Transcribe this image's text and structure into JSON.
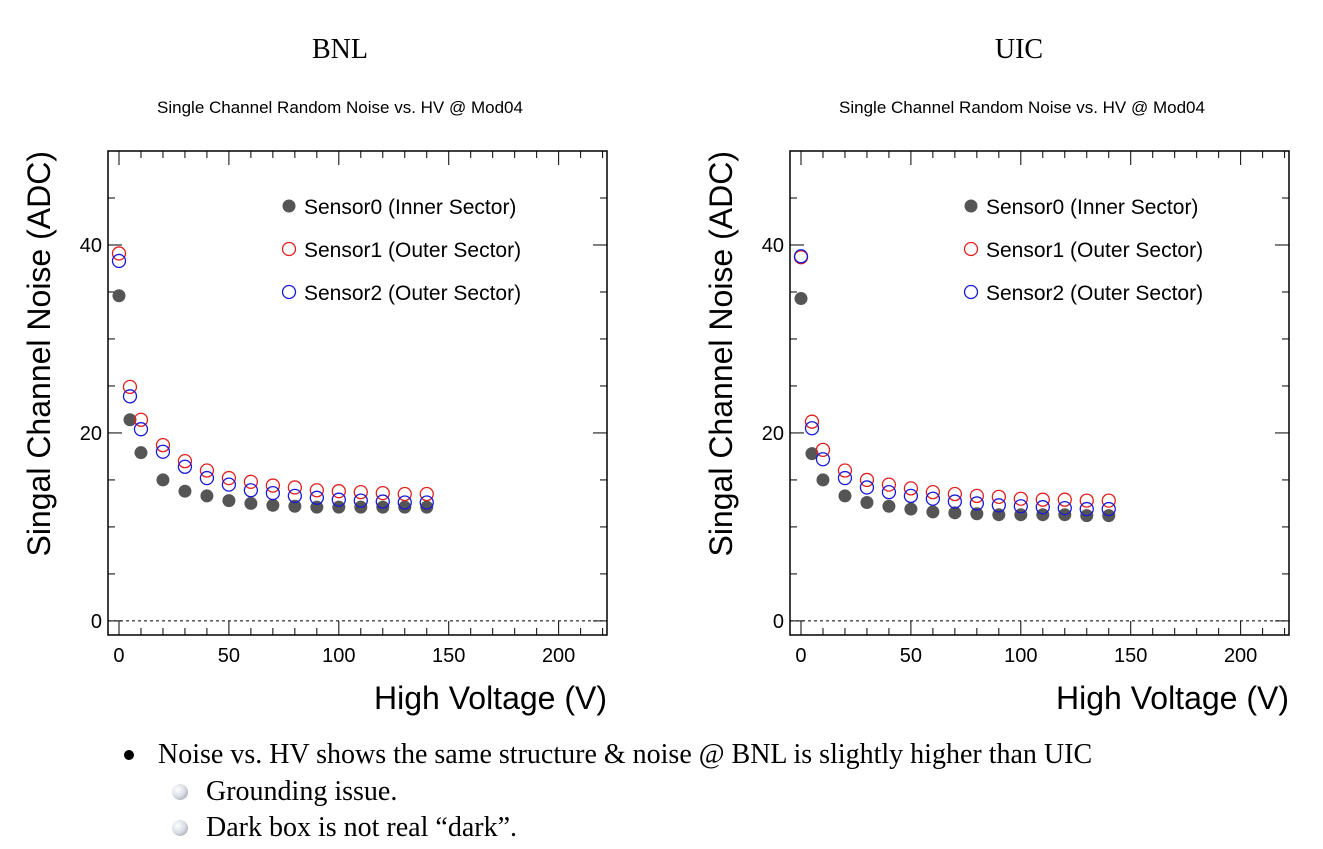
{
  "panels": [
    {
      "header": "BNL"
    },
    {
      "header": "UIC"
    }
  ],
  "chart_data": [
    {
      "type": "scatter",
      "title": "Single Channel Random Noise vs. HV @ Mod04",
      "xlabel": "High Voltage (V)",
      "ylabel": "Singal Channel Noise (ADC)",
      "xlim": [
        -5,
        222
      ],
      "ylim": [
        -1.5,
        50
      ],
      "xticks": [
        0,
        50,
        100,
        150,
        200
      ],
      "yticks": [
        0,
        20,
        40
      ],
      "reference_line": {
        "y": 0,
        "style": "dashed"
      },
      "legend_position": "top-right",
      "series": [
        {
          "name": "Sensor0 (Inner Sector)",
          "marker": "filled-circle",
          "color": "#555555",
          "x": [
            0,
            5,
            10,
            20,
            30,
            40,
            50,
            60,
            70,
            80,
            90,
            100,
            110,
            120,
            130,
            140
          ],
          "y": [
            34.6,
            21.4,
            17.9,
            15.0,
            13.8,
            13.3,
            12.8,
            12.5,
            12.3,
            12.2,
            12.1,
            12.1,
            12.1,
            12.1,
            12.1,
            12.1
          ]
        },
        {
          "name": "Sensor1 (Outer Sector)",
          "marker": "open-circle",
          "color": "#e0201e",
          "x": [
            0,
            5,
            10,
            20,
            30,
            40,
            50,
            60,
            70,
            80,
            90,
            100,
            110,
            120,
            130,
            140
          ],
          "y": [
            39.1,
            24.9,
            21.4,
            18.7,
            17.0,
            16.0,
            15.2,
            14.8,
            14.4,
            14.2,
            13.9,
            13.8,
            13.7,
            13.6,
            13.5,
            13.5
          ]
        },
        {
          "name": "Sensor2 (Outer Sector)",
          "marker": "open-circle",
          "color": "#1a1ad6",
          "x": [
            0,
            5,
            10,
            20,
            30,
            40,
            50,
            60,
            70,
            80,
            90,
            100,
            110,
            120,
            130,
            140
          ],
          "y": [
            38.3,
            23.9,
            20.4,
            18.0,
            16.4,
            15.2,
            14.5,
            13.9,
            13.6,
            13.3,
            13.1,
            12.9,
            12.8,
            12.7,
            12.6,
            12.6
          ]
        }
      ]
    },
    {
      "type": "scatter",
      "title": "Single Channel Random Noise vs. HV @ Mod04",
      "xlabel": "High Voltage (V)",
      "ylabel": "Singal Channel Noise (ADC)",
      "xlim": [
        -5,
        222
      ],
      "ylim": [
        -1.5,
        50
      ],
      "xticks": [
        0,
        50,
        100,
        150,
        200
      ],
      "yticks": [
        0,
        20,
        40
      ],
      "reference_line": {
        "y": 0,
        "style": "dashed"
      },
      "legend_position": "top-right",
      "series": [
        {
          "name": "Sensor0 (Inner Sector)",
          "marker": "filled-circle",
          "color": "#555555",
          "x": [
            0,
            5,
            10,
            20,
            30,
            40,
            50,
            60,
            70,
            80,
            90,
            100,
            110,
            120,
            130,
            140
          ],
          "y": [
            34.3,
            17.8,
            15.0,
            13.3,
            12.6,
            12.2,
            11.9,
            11.6,
            11.5,
            11.4,
            11.3,
            11.3,
            11.3,
            11.3,
            11.2,
            11.2
          ]
        },
        {
          "name": "Sensor1 (Outer Sector)",
          "marker": "open-circle",
          "color": "#e0201e",
          "x": [
            0,
            5,
            10,
            20,
            30,
            40,
            50,
            60,
            70,
            80,
            90,
            100,
            110,
            120,
            130,
            140
          ],
          "y": [
            38.7,
            21.2,
            18.2,
            16.0,
            15.0,
            14.5,
            14.1,
            13.7,
            13.5,
            13.3,
            13.2,
            13.0,
            12.9,
            12.9,
            12.8,
            12.8
          ]
        },
        {
          "name": "Sensor2 (Outer Sector)",
          "marker": "open-circle",
          "color": "#1a1ad6",
          "x": [
            0,
            5,
            10,
            20,
            30,
            40,
            50,
            60,
            70,
            80,
            90,
            100,
            110,
            120,
            130,
            140
          ],
          "y": [
            38.8,
            20.5,
            17.2,
            15.2,
            14.2,
            13.7,
            13.3,
            13.0,
            12.7,
            12.5,
            12.3,
            12.2,
            12.1,
            12.0,
            11.9,
            11.9
          ]
        }
      ]
    }
  ],
  "bullets": [
    {
      "text": "Noise vs. HV shows the same structure & noise @ BNL is slightly higher than UIC",
      "sub": [
        "Grounding issue.",
        "Dark box is not real “dark”."
      ]
    }
  ]
}
